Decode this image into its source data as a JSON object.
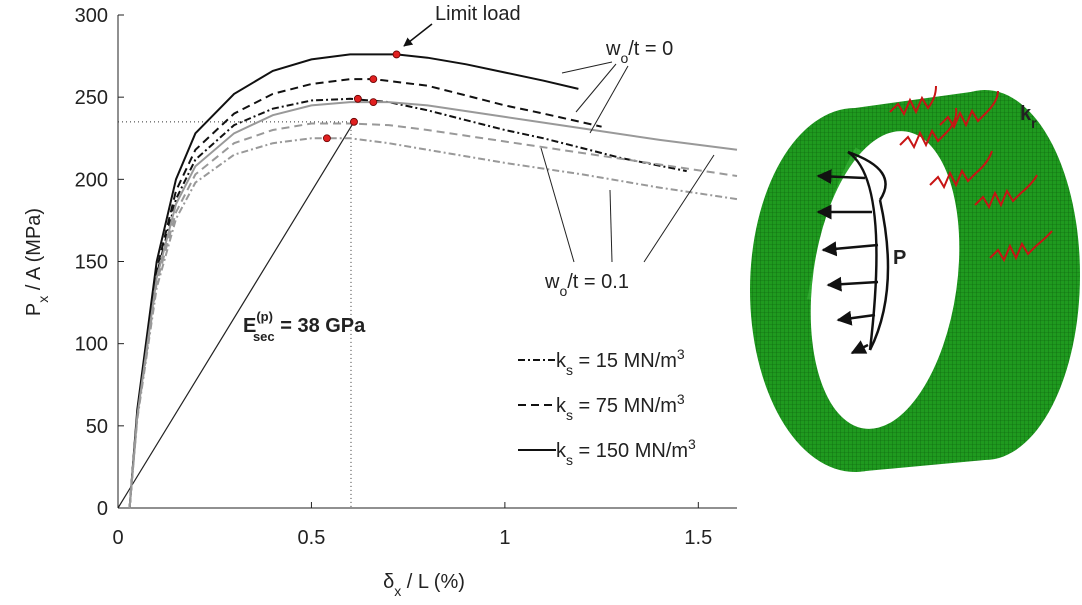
{
  "chart_data": {
    "type": "line",
    "xlim": [
      0,
      1.6
    ],
    "ylim": [
      0,
      300
    ],
    "xticks": [
      0,
      0.5,
      1,
      1.5
    ],
    "yticks": [
      0,
      50,
      100,
      150,
      200,
      250,
      300
    ],
    "x_label": {
      "base": "δ",
      "sub": "x",
      "text": " / L (%)"
    },
    "y_label": {
      "base": "P",
      "sub": "x",
      "text": " / A (MPa)"
    },
    "legend": [
      {
        "base": "k",
        "sub": "s",
        "text": " = 15 MN/m",
        "sup": "3",
        "linestyle": "dashdot"
      },
      {
        "base": "k",
        "sub": "s",
        "text": " = 75 MN/m",
        "sup": "3",
        "linestyle": "dashed"
      },
      {
        "base": "k",
        "sub": "s",
        "text": " = 150 MN/m",
        "sup": "3",
        "linestyle": "solid"
      }
    ],
    "series": [
      {
        "color": "#111111",
        "linestyle": "solid",
        "x": [
          0.03,
          0.05,
          0.1,
          0.15,
          0.2,
          0.3,
          0.4,
          0.5,
          0.6,
          0.72,
          0.8,
          0.9,
          1.0,
          1.1,
          1.19
        ],
        "values": [
          0,
          60,
          150,
          200,
          228,
          252,
          266,
          273,
          276,
          276,
          274,
          270,
          265,
          260,
          255
        ]
      },
      {
        "color": "#111111",
        "linestyle": "dashed",
        "x": [
          0.03,
          0.05,
          0.1,
          0.15,
          0.2,
          0.3,
          0.4,
          0.5,
          0.6,
          0.66,
          0.8,
          0.9,
          1.0,
          1.1,
          1.25
        ],
        "values": [
          0,
          58,
          145,
          193,
          218,
          240,
          252,
          258,
          261,
          261,
          257,
          251,
          245,
          240,
          232
        ]
      },
      {
        "color": "#111111",
        "linestyle": "dashdot",
        "x": [
          0.03,
          0.05,
          0.1,
          0.15,
          0.2,
          0.3,
          0.4,
          0.5,
          0.6,
          0.7,
          0.8,
          0.9,
          1.0,
          1.1,
          1.2,
          1.3,
          1.47
        ],
        "values": [
          0,
          57,
          142,
          188,
          212,
          233,
          243,
          248,
          249,
          247,
          242,
          236,
          230,
          225,
          219,
          213,
          205
        ]
      },
      {
        "color": "#999999",
        "linestyle": "solid",
        "x": [
          0.03,
          0.05,
          0.1,
          0.15,
          0.2,
          0.3,
          0.4,
          0.5,
          0.6,
          0.7,
          0.8,
          1.0,
          1.2,
          1.4,
          1.6
        ],
        "values": [
          0,
          56,
          140,
          185,
          208,
          228,
          239,
          245,
          247,
          247,
          245,
          238,
          231,
          224,
          218
        ]
      },
      {
        "color": "#999999",
        "linestyle": "dashed",
        "x": [
          0.03,
          0.05,
          0.1,
          0.15,
          0.2,
          0.3,
          0.4,
          0.5,
          0.6,
          0.7,
          0.8,
          1.0,
          1.2,
          1.4,
          1.6
        ],
        "values": [
          0,
          55,
          137,
          180,
          203,
          222,
          230,
          234,
          234,
          233,
          230,
          223,
          216,
          209,
          202
        ]
      },
      {
        "color": "#999999",
        "linestyle": "dashdot",
        "x": [
          0.03,
          0.05,
          0.1,
          0.15,
          0.2,
          0.3,
          0.4,
          0.5,
          0.6,
          0.7,
          0.8,
          1.0,
          1.2,
          1.4,
          1.6
        ],
        "values": [
          0,
          54,
          134,
          176,
          198,
          215,
          222,
          225,
          225,
          222,
          218,
          210,
          203,
          195,
          188
        ]
      }
    ],
    "limit_points": {
      "color": "#e02020",
      "x": [
        0.72,
        0.66,
        0.62,
        0.66,
        0.61,
        0.54
      ],
      "y": [
        276,
        261,
        249,
        247,
        235,
        225
      ]
    },
    "secant": {
      "x": [
        0,
        0.61
      ],
      "values": [
        0,
        235
      ]
    },
    "annotations": {
      "limit_load": "Limit load",
      "imperfect_zero": {
        "base": "w",
        "sub": "o",
        "text": "/t = 0"
      },
      "imperfect_one": {
        "base": "w",
        "sub": "o",
        "text": "/t = 0.1"
      },
      "secant_modulus": {
        "base": "E",
        "sup": "(p)",
        "sub": "sec",
        "text": " = 38 GPa"
      }
    }
  },
  "figure": {
    "load_label": "P",
    "spring_label": {
      "base": "k",
      "sub": "r"
    }
  }
}
